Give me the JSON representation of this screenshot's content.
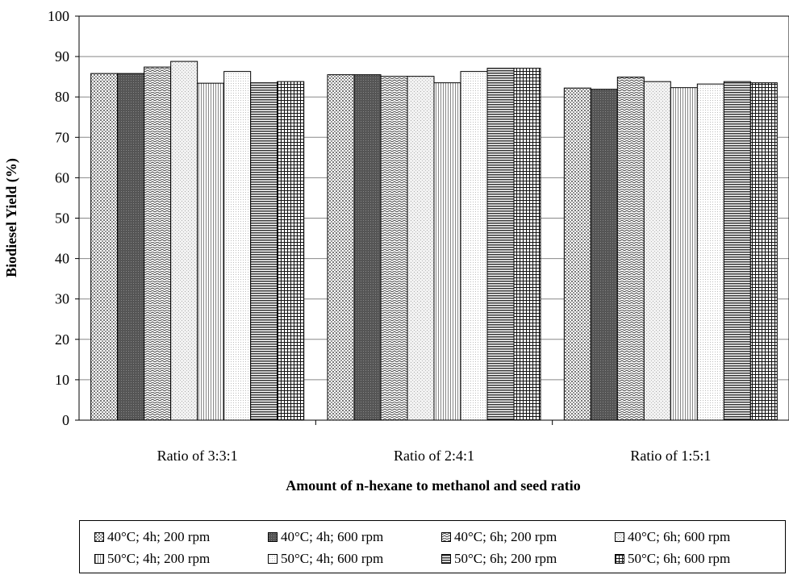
{
  "chart_data": {
    "type": "bar",
    "title": "",
    "xlabel": "Amount of n-hexane to methanol and seed ratio",
    "ylabel": "Biodiesel Yield (%)",
    "ylim": [
      0,
      100
    ],
    "yticks": [
      0,
      10,
      20,
      30,
      40,
      50,
      60,
      70,
      80,
      90,
      100
    ],
    "grid": true,
    "legend_position": "bottom",
    "categories": [
      "Ratio of 3:3:1",
      "Ratio of 2:4:1",
      "Ratio of 1:5:1"
    ],
    "series": [
      {
        "name": "40°C; 4h; 200 rpm",
        "values": [
          85.8,
          85.5,
          82.2
        ],
        "pattern": "dots"
      },
      {
        "name": "40°C; 4h; 600 rpm",
        "values": [
          85.8,
          85.5,
          81.9
        ],
        "pattern": "dark"
      },
      {
        "name": "40°C; 6h; 200 rpm",
        "values": [
          87.4,
          85.1,
          84.9
        ],
        "pattern": "zigzag"
      },
      {
        "name": "40°C; 6h; 600 rpm",
        "values": [
          88.8,
          85.1,
          83.8
        ],
        "pattern": "light-dots"
      },
      {
        "name": "50°C; 4h; 200 rpm",
        "values": [
          83.4,
          83.5,
          82.3
        ],
        "pattern": "vertical"
      },
      {
        "name": "50°C; 4h; 600 rpm",
        "values": [
          86.3,
          86.3,
          83.2
        ],
        "pattern": "fine-dots"
      },
      {
        "name": "50°C; 6h; 200 rpm",
        "values": [
          83.5,
          87.1,
          83.8
        ],
        "pattern": "horizontal"
      },
      {
        "name": "50°C; 6h; 600 rpm",
        "values": [
          83.8,
          87.1,
          83.5
        ],
        "pattern": "grid"
      }
    ]
  }
}
